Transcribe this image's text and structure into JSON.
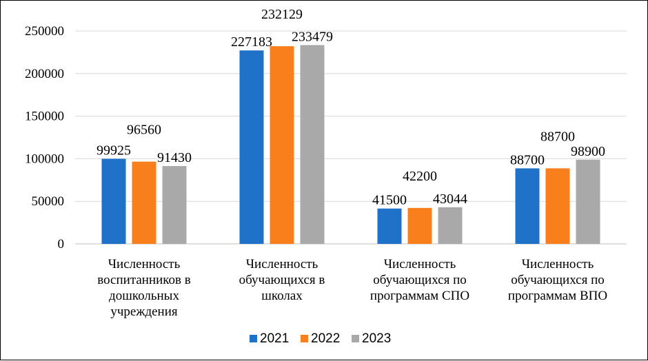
{
  "chart_data": {
    "type": "bar",
    "title": "",
    "xlabel": "",
    "ylabel": "",
    "ylim": [
      0,
      250000
    ],
    "yticks": [
      "0",
      "50000",
      "100000",
      "150000",
      "200000",
      "250000"
    ],
    "grid": true,
    "legend_position": "bottom",
    "categories": [
      [
        "Численность",
        "воспитанников в",
        "дошкольных",
        "учреждения"
      ],
      [
        "Численность",
        "обучающихся в",
        "школах"
      ],
      [
        "Численность",
        "обучающихся по",
        "программам СПО"
      ],
      [
        "Численность",
        "обучающихся по",
        "программам ВПО"
      ]
    ],
    "series": [
      {
        "name": "2021",
        "color": "#1f72c8",
        "values": [
          99925,
          227183,
          41500,
          88700
        ]
      },
      {
        "name": "2022",
        "color": "#f97e1c",
        "values": [
          96560,
          232129,
          42200,
          88700
        ]
      },
      {
        "name": "2023",
        "color": "#a9a9a9",
        "values": [
          91430,
          233479,
          43044,
          98900
        ]
      }
    ],
    "data_labels": [
      [
        "99925",
        "227183",
        "41500",
        "88700"
      ],
      [
        "96560",
        "232129",
        "42200",
        "88700"
      ],
      [
        "91430",
        "233479",
        "43044",
        "98900"
      ]
    ]
  }
}
